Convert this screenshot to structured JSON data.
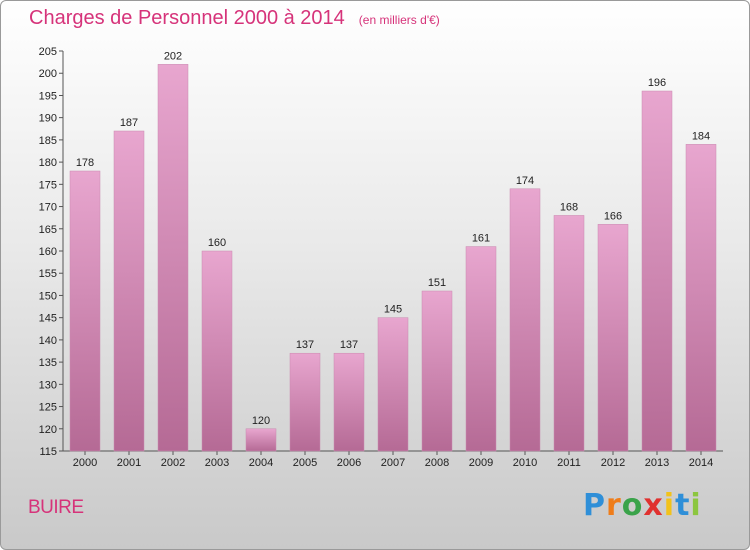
{
  "header": {
    "title": "Charges de Personnel 2000 à 2014",
    "subtitle": "(en milliers d'€)"
  },
  "footer": {
    "commune": "BUIRE",
    "logo_text": "Proxiti"
  },
  "colors": {
    "title": "#d6337a",
    "bar_light": "#e8a6cf",
    "bar_dark": "#b56a95"
  },
  "chart_data": {
    "type": "bar",
    "title": "Charges de Personnel 2000 à 2014",
    "subtitle": "(en milliers d'€)",
    "categories": [
      "2000",
      "2001",
      "2002",
      "2003",
      "2004",
      "2005",
      "2006",
      "2007",
      "2008",
      "2009",
      "2010",
      "2011",
      "2012",
      "2013",
      "2014"
    ],
    "values": [
      178,
      187,
      202,
      160,
      120,
      137,
      137,
      145,
      151,
      161,
      174,
      168,
      166,
      196,
      184
    ],
    "ylim": [
      115,
      205
    ],
    "yticks": [
      115,
      120,
      125,
      130,
      135,
      140,
      145,
      150,
      155,
      160,
      165,
      170,
      175,
      180,
      185,
      190,
      195,
      200,
      205
    ],
    "grid": false,
    "legend": "none"
  }
}
